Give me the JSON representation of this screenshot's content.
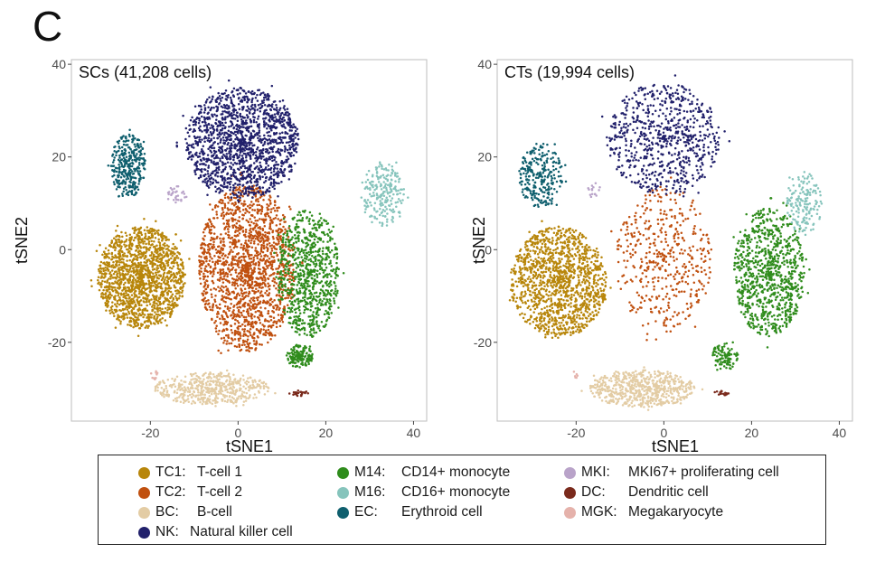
{
  "figure": {
    "panel_letter": "C"
  },
  "chart_data": [
    {
      "type": "scatter",
      "title": "SCs (41,208 cells)",
      "xlabel": "tSNE1",
      "ylabel": "tSNE2",
      "xlim": [
        -38,
        43
      ],
      "ylim": [
        -37,
        41
      ],
      "xticks": [
        -20,
        0,
        20,
        40
      ],
      "yticks": [
        -20,
        0,
        20,
        40
      ],
      "grid": false,
      "clusters": [
        {
          "code": "TC1",
          "cx": -22,
          "cy": -6,
          "rx": 10,
          "ry": 11,
          "n": 1500
        },
        {
          "code": "TC2",
          "cx": 2,
          "cy": -4,
          "rx": 11,
          "ry": 18,
          "n": 1700
        },
        {
          "code": "NK",
          "cx": 1,
          "cy": 23,
          "rx": 13,
          "ry": 12,
          "n": 1500
        },
        {
          "code": "M14",
          "cx": 16,
          "cy": -5,
          "rx": 7,
          "ry": 14,
          "n": 800
        },
        {
          "code": "M14",
          "cx": 14,
          "cy": -23,
          "rx": 3,
          "ry": 2.5,
          "n": 150
        },
        {
          "code": "M16",
          "cx": 33,
          "cy": 12,
          "rx": 5,
          "ry": 7,
          "n": 220
        },
        {
          "code": "EC",
          "cx": -25,
          "cy": 18,
          "rx": 4,
          "ry": 7,
          "n": 320
        },
        {
          "code": "BC",
          "cx": -6,
          "cy": -30,
          "rx": 13,
          "ry": 3.5,
          "n": 500
        },
        {
          "code": "MKI",
          "cx": -14,
          "cy": 12,
          "rx": 2,
          "ry": 2,
          "n": 30
        },
        {
          "code": "DC",
          "cx": 14,
          "cy": -31,
          "rx": 2,
          "ry": 0.6,
          "n": 25
        },
        {
          "code": "MGK",
          "cx": -19,
          "cy": -27,
          "rx": 1,
          "ry": 1,
          "n": 10
        }
      ]
    },
    {
      "type": "scatter",
      "title": "CTs (19,994 cells)",
      "xlabel": "tSNE1",
      "ylabel": "tSNE2",
      "xlim": [
        -38,
        43
      ],
      "ylim": [
        -37,
        41
      ],
      "xticks": [
        -20,
        0,
        20,
        40
      ],
      "yticks": [
        -20,
        0,
        20,
        40
      ],
      "grid": false,
      "clusters": [
        {
          "code": "TC1",
          "cx": -24,
          "cy": -7,
          "rx": 11,
          "ry": 12,
          "n": 1300
        },
        {
          "code": "TC2",
          "cx": 0,
          "cy": -2,
          "rx": 11,
          "ry": 16,
          "n": 450
        },
        {
          "code": "NK",
          "cx": 0,
          "cy": 24,
          "rx": 13,
          "ry": 12,
          "n": 700
        },
        {
          "code": "M14",
          "cx": 24,
          "cy": -5,
          "rx": 8,
          "ry": 14,
          "n": 900
        },
        {
          "code": "M14",
          "cx": 14,
          "cy": -23,
          "rx": 3,
          "ry": 3,
          "n": 100
        },
        {
          "code": "M16",
          "cx": 32,
          "cy": 10,
          "rx": 4,
          "ry": 7,
          "n": 160
        },
        {
          "code": "EC",
          "cx": -28,
          "cy": 16,
          "rx": 5,
          "ry": 7,
          "n": 260
        },
        {
          "code": "BC",
          "cx": -5,
          "cy": -30,
          "rx": 12,
          "ry": 4,
          "n": 600
        },
        {
          "code": "MKI",
          "cx": -16,
          "cy": 13,
          "rx": 1.5,
          "ry": 1.5,
          "n": 15
        },
        {
          "code": "DC",
          "cx": 13,
          "cy": -31,
          "rx": 2,
          "ry": 0.5,
          "n": 15
        },
        {
          "code": "MGK",
          "cx": -20,
          "cy": -27,
          "rx": 1,
          "ry": 1,
          "n": 6
        }
      ]
    }
  ],
  "legend": {
    "items": [
      {
        "code": "TC1:",
        "name": "T-cell 1",
        "color": "#b8860b"
      },
      {
        "code": "TC2:",
        "name": "T-cell 2",
        "color": "#c0500f"
      },
      {
        "code": "BC:",
        "name": "B-cell",
        "color": "#e3cca4"
      },
      {
        "code": "NK:",
        "name": "Natural killer cell",
        "color": "#21206b"
      },
      {
        "code": "M14:",
        "name": "CD14+ monocyte",
        "color": "#2f8c1c"
      },
      {
        "code": "M16:",
        "name": "CD16+ monocyte",
        "color": "#86c4bc"
      },
      {
        "code": "EC:",
        "name": "Erythroid cell",
        "color": "#0f5f6e"
      },
      {
        "code": "MKI:",
        "name": "MKI67+ proliferating cell",
        "color": "#b9a3c9"
      },
      {
        "code": "DC:",
        "name": "Dendritic cell",
        "color": "#7a2a1c"
      },
      {
        "code": "MGK:",
        "name": "Megakaryocyte",
        "color": "#e5b2ab"
      }
    ]
  },
  "colors": {
    "TC1": "#b8860b",
    "TC2": "#c0500f",
    "BC": "#e3cca4",
    "NK": "#21206b",
    "M14": "#2f8c1c",
    "M16": "#86c4bc",
    "EC": "#0f5f6e",
    "MKI": "#b9a3c9",
    "DC": "#7a2a1c",
    "MGK": "#e5b2ab"
  }
}
